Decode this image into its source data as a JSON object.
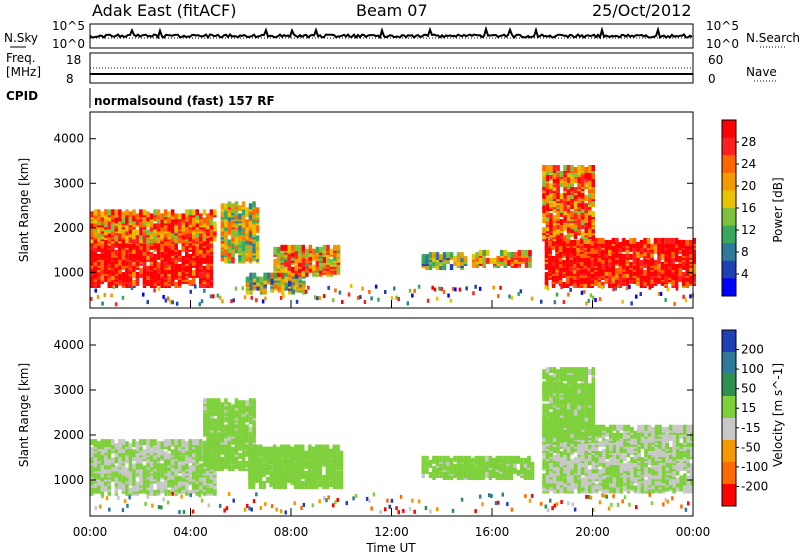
{
  "header": {
    "station": "Adak East (fitACF)",
    "beam": "Beam 07",
    "date": "25/Oct/2012"
  },
  "panels": {
    "nsky": {
      "left_label": "N.Sky",
      "right_label": "N.Search",
      "tick_top": "10^5",
      "tick_bottom": "10^0",
      "right_tick_top": "10^5",
      "right_tick_bottom": "10^0"
    },
    "freq": {
      "label_line1": "Freq.",
      "label_line2": "[MHz]",
      "tick_top": "18",
      "tick_bottom": "8",
      "right_label": "Nave",
      "right_tick_top": "60",
      "right_tick_bottom": "0"
    },
    "cpid": {
      "label": "CPID",
      "text": "normalsound (fast) 157 RF"
    },
    "power": {
      "ylabel": "Slant Range [km]",
      "yticks": [
        "1000",
        "2000",
        "3000",
        "4000"
      ],
      "colorbar_label": "Power [dB]",
      "colorbar_ticks": [
        "28",
        "24",
        "20",
        "16",
        "12",
        "8",
        "4"
      ],
      "colors": [
        "#ff0000",
        "#ff2020",
        "#ff6600",
        "#f39a00",
        "#e8c400",
        "#7fc13c",
        "#3aa85c",
        "#2f7a9a",
        "#1f3fb5",
        "#0000ff"
      ]
    },
    "velocity": {
      "ylabel": "Slant Range [km]",
      "yticks": [
        "1000",
        "2000",
        "3000",
        "4000"
      ],
      "colorbar_label": "Velocity [m s^-1]",
      "colorbar_ticks": [
        "200",
        "100",
        "50",
        "15",
        "-15",
        "-50",
        "-100",
        "-200"
      ],
      "colors": [
        "#1f3fb5",
        "#2f7a9a",
        "#2f8f4f",
        "#7fd13c",
        "#c8c8c8",
        "#f39a00",
        "#ff6a00",
        "#ff0000"
      ]
    }
  },
  "xaxis": {
    "label": "Time UT",
    "ticks": [
      "00:00",
      "04:00",
      "08:00",
      "12:00",
      "16:00",
      "20:00",
      "00:00"
    ]
  },
  "chart_data": {
    "type": "heatmap",
    "xlabel": "Time UT",
    "ylabel": "Slant Range [km]",
    "x_range": [
      "00:00",
      "00:00"
    ],
    "y_range": [
      200,
      4600
    ],
    "power_scale_db": [
      0,
      30
    ],
    "velocity_scale_ms": [
      -250,
      250
    ],
    "power_blobs": [
      {
        "t0": 0.0,
        "t1": 4.8,
        "r0": 650,
        "r1": 1650,
        "level": 29
      },
      {
        "t0": 0.0,
        "t1": 5.0,
        "r0": 1650,
        "r1": 2300,
        "level": 22
      },
      {
        "t0": 5.2,
        "t1": 6.6,
        "r0": 1200,
        "r1": 2500,
        "level": 16
      },
      {
        "t0": 6.2,
        "t1": 8.5,
        "r0": 500,
        "r1": 900,
        "level": 14
      },
      {
        "t0": 7.3,
        "t1": 9.9,
        "r0": 900,
        "r1": 1500,
        "level": 20
      },
      {
        "t0": 13.2,
        "t1": 15.0,
        "r0": 1050,
        "r1": 1350,
        "level": 12
      },
      {
        "t0": 15.2,
        "t1": 17.5,
        "r0": 1100,
        "r1": 1400,
        "level": 20
      },
      {
        "t0": 18.1,
        "t1": 24.0,
        "r0": 650,
        "r1": 1650,
        "level": 29
      },
      {
        "t0": 18.0,
        "t1": 20.0,
        "r0": 1700,
        "r1": 3300,
        "level": 22
      }
    ],
    "velocity_blobs": [
      {
        "t0": 0.0,
        "t1": 5.0,
        "r0": 650,
        "r1": 1800,
        "level": 0
      },
      {
        "t0": 4.5,
        "t1": 6.5,
        "r0": 1200,
        "r1": 2700,
        "level": 25
      },
      {
        "t0": 6.3,
        "t1": 10.0,
        "r0": 800,
        "r1": 1700,
        "level": 30
      },
      {
        "t0": 13.2,
        "t1": 17.6,
        "r0": 1000,
        "r1": 1450,
        "level": 25
      },
      {
        "t0": 18.0,
        "t1": 24.0,
        "r0": 700,
        "r1": 2100,
        "level": 0
      },
      {
        "t0": 18.0,
        "t1": 20.0,
        "r0": 1800,
        "r1": 3400,
        "level": 25
      }
    ]
  }
}
